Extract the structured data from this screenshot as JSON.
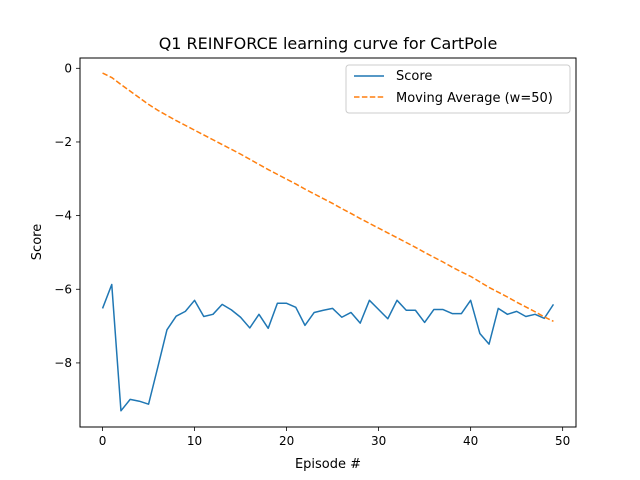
{
  "chart_data": {
    "type": "line",
    "title": "Q1 REINFORCE learning curve for CartPole",
    "xlabel": "Episode #",
    "ylabel": "Score",
    "xlim": [
      -2.45,
      51.45
    ],
    "ylim": [
      -9.74,
      0.28
    ],
    "xticks": [
      0,
      10,
      20,
      30,
      40,
      50
    ],
    "yticks": [
      0,
      -2,
      -4,
      -6,
      -8
    ],
    "grid": false,
    "legend": {
      "position": "top-right"
    },
    "series": [
      {
        "name": "Score",
        "style": "solid",
        "color": "#1f77b4",
        "x": [
          0,
          1,
          2,
          3,
          4,
          5,
          6,
          7,
          8,
          9,
          10,
          11,
          12,
          13,
          14,
          15,
          16,
          17,
          18,
          19,
          20,
          21,
          22,
          23,
          24,
          25,
          26,
          27,
          28,
          29,
          30,
          31,
          32,
          33,
          34,
          35,
          36,
          37,
          38,
          39,
          40,
          41,
          42,
          43,
          44,
          45,
          46,
          47,
          48,
          49
        ],
        "values": [
          -6.52,
          -5.87,
          -9.3,
          -8.99,
          -9.04,
          -9.12,
          -8.12,
          -7.1,
          -6.73,
          -6.6,
          -6.3,
          -6.74,
          -6.68,
          -6.41,
          -6.56,
          -6.76,
          -7.05,
          -6.68,
          -7.06,
          -6.38,
          -6.38,
          -6.49,
          -6.98,
          -6.63,
          -6.57,
          -6.52,
          -6.76,
          -6.63,
          -6.92,
          -6.3,
          -6.55,
          -6.8,
          -6.3,
          -6.57,
          -6.57,
          -6.9,
          -6.55,
          -6.55,
          -6.66,
          -6.66,
          -6.3,
          -7.2,
          -7.49,
          -6.52,
          -6.68,
          -6.6,
          -6.74,
          -6.68,
          -6.79,
          -6.41
        ]
      },
      {
        "name": "Moving Average (w=50)",
        "style": "dashed",
        "color": "#ff7f0e",
        "x": [
          0,
          1,
          2,
          3,
          4,
          5,
          6,
          7,
          8,
          9,
          10,
          11,
          12,
          13,
          14,
          15,
          16,
          17,
          18,
          19,
          20,
          21,
          22,
          23,
          24,
          25,
          26,
          27,
          28,
          29,
          30,
          31,
          32,
          33,
          34,
          35,
          36,
          37,
          38,
          39,
          40,
          41,
          42,
          43,
          44,
          45,
          46,
          47,
          48,
          49
        ],
        "values": [
          -0.13,
          -0.25,
          -0.44,
          -0.62,
          -0.8,
          -0.98,
          -1.14,
          -1.28,
          -1.42,
          -1.55,
          -1.68,
          -1.81,
          -1.94,
          -2.07,
          -2.2,
          -2.33,
          -2.47,
          -2.61,
          -2.75,
          -2.88,
          -3.01,
          -3.14,
          -3.28,
          -3.41,
          -3.54,
          -3.67,
          -3.81,
          -3.94,
          -4.08,
          -4.21,
          -4.34,
          -4.47,
          -4.6,
          -4.73,
          -4.86,
          -5.0,
          -5.13,
          -5.26,
          -5.4,
          -5.53,
          -5.65,
          -5.8,
          -5.95,
          -6.08,
          -6.21,
          -6.35,
          -6.48,
          -6.61,
          -6.75,
          -6.87
        ]
      }
    ]
  }
}
